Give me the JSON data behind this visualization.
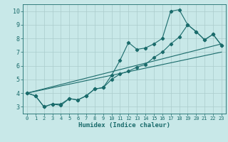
{
  "background_color": "#c8e8e8",
  "grid_color": "#aacccc",
  "line_color": "#1a6b6b",
  "xlabel": "Humidex (Indice chaleur)",
  "xlim": [
    -0.5,
    23.5
  ],
  "ylim": [
    2.5,
    10.5
  ],
  "xticks": [
    0,
    1,
    2,
    3,
    4,
    5,
    6,
    7,
    8,
    9,
    10,
    11,
    12,
    13,
    14,
    15,
    16,
    17,
    18,
    19,
    20,
    21,
    22,
    23
  ],
  "yticks": [
    3,
    4,
    5,
    6,
    7,
    8,
    9,
    10
  ],
  "line_jagged": {
    "x": [
      0,
      1,
      2,
      3,
      4,
      5,
      6,
      7,
      8,
      9,
      10,
      11,
      12,
      13,
      14,
      15,
      16,
      17,
      18,
      19,
      20,
      21,
      22,
      23
    ],
    "y": [
      4.0,
      3.8,
      3.0,
      3.2,
      3.1,
      3.6,
      3.5,
      3.8,
      4.3,
      4.4,
      5.3,
      6.4,
      7.7,
      7.2,
      7.3,
      7.6,
      8.0,
      10.0,
      10.1,
      9.0,
      8.5,
      7.9,
      8.3,
      7.5
    ]
  },
  "line_medium": {
    "x": [
      0,
      1,
      2,
      3,
      4,
      5,
      6,
      7,
      8,
      9,
      10,
      11,
      12,
      13,
      14,
      15,
      16,
      17,
      18,
      19,
      20,
      21,
      22,
      23
    ],
    "y": [
      4.0,
      3.8,
      3.0,
      3.2,
      3.2,
      3.6,
      3.5,
      3.8,
      4.3,
      4.4,
      5.0,
      5.4,
      5.6,
      5.9,
      6.1,
      6.6,
      7.0,
      7.6,
      8.1,
      9.0,
      8.5,
      7.9,
      8.3,
      7.5
    ]
  },
  "line_ref_low": {
    "x": [
      0,
      23
    ],
    "y": [
      4.0,
      7.0
    ]
  },
  "line_ref_high": {
    "x": [
      0,
      23
    ],
    "y": [
      4.0,
      7.6
    ]
  }
}
